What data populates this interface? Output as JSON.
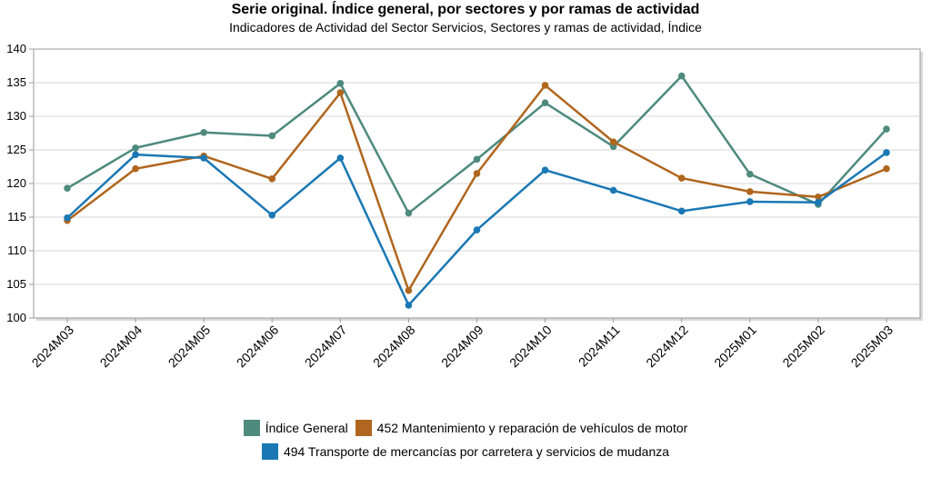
{
  "chart_data": {
    "type": "line",
    "title": "Serie original. Índice general, por sectores y por ramas de actividad",
    "subtitle": "Indicadores de Actividad del Sector Servicios, Sectores y ramas de actividad, Índice",
    "categories": [
      "2024M03",
      "2024M04",
      "2024M05",
      "2024M06",
      "2024M07",
      "2024M08",
      "2024M09",
      "2024M10",
      "2024M11",
      "2024M12",
      "2025M01",
      "2025M02",
      "2025M03"
    ],
    "ylim": [
      100,
      140
    ],
    "yticks": [
      100,
      105,
      110,
      115,
      120,
      125,
      130,
      135,
      140
    ],
    "grid": true,
    "legend_position": "bottom",
    "series": [
      {
        "name": "Índice General",
        "color": "#4e8a7e",
        "values": [
          119.3,
          125.3,
          127.6,
          127.1,
          134.9,
          115.6,
          123.6,
          132.0,
          125.5,
          136.0,
          121.4,
          116.9,
          128.1
        ]
      },
      {
        "name": "452 Mantenimiento y reparación de vehículos de motor",
        "color": "#b0661e",
        "values": [
          114.5,
          122.2,
          124.1,
          120.7,
          133.5,
          104.1,
          121.5,
          134.6,
          126.2,
          120.8,
          118.8,
          118.0,
          122.2
        ]
      },
      {
        "name": "494 Transporte de mercancías por carretera y servicios de mudanza",
        "color": "#1a78b4",
        "values": [
          114.9,
          124.3,
          123.8,
          115.3,
          123.8,
          101.9,
          113.1,
          122.0,
          119.0,
          115.9,
          117.3,
          117.2,
          124.6
        ]
      }
    ]
  }
}
